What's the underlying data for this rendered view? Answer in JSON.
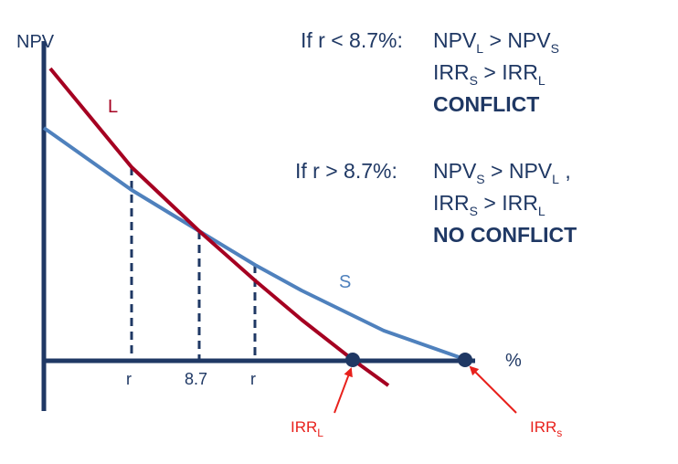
{
  "axes": {
    "y_label": "NPV",
    "x_label": "%"
  },
  "curves": {
    "L": {
      "label": "L",
      "color": "#a50021"
    },
    "S": {
      "label": "S",
      "color": "#4f81bd"
    }
  },
  "x_ticks": {
    "left": "r",
    "crossover": "8.7",
    "right": "r"
  },
  "irr_labels": {
    "L": {
      "main": "IRR",
      "sub": "L"
    },
    "S": {
      "main": "IRR",
      "sub": "s"
    }
  },
  "conditions": [
    {
      "lead": "If r < 8.7%:",
      "line1": {
        "a": "NPV",
        "a_sub": "L",
        "op": " > ",
        "b": "NPV",
        "b_sub": "S",
        "tail": ""
      },
      "line2": {
        "a": "IRR",
        "a_sub": "S",
        "op": " > ",
        "b": "IRR",
        "b_sub": "L"
      },
      "verdict": "CONFLICT"
    },
    {
      "lead": "If r > 8.7%:",
      "line1": {
        "a": "NPV",
        "a_sub": "S",
        "op": " > ",
        "b": "NPV",
        "b_sub": "L",
        "tail": " ,"
      },
      "line2": {
        "a": "IRR",
        "a_sub": "S",
        "op": " > ",
        "b": "IRR",
        "b_sub": "L"
      },
      "verdict": "NO CONFLICT"
    }
  ],
  "colors": {
    "axis": "#1f3864",
    "irr_arrow": "#e8211c"
  }
}
